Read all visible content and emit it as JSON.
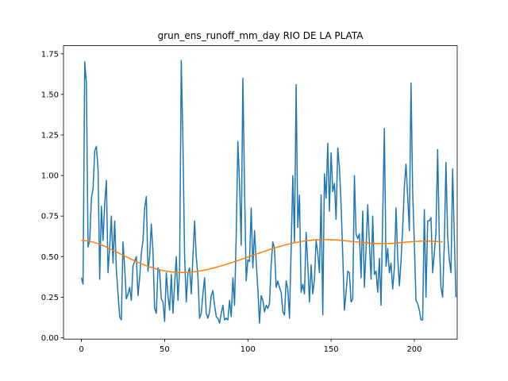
{
  "chart_data": {
    "type": "line",
    "title": "grun_ens_runoff_mm_day RIO DE LA PLATA",
    "xlabel": "",
    "ylabel": "",
    "xlim": [
      -10.75,
      225.75
    ],
    "ylim": [
      -0.0085,
      1.8
    ],
    "x_ticks": [
      0,
      50,
      100,
      150,
      200
    ],
    "x_tick_labels": [
      "0",
      "50",
      "100",
      "150",
      "200"
    ],
    "y_ticks": [
      0.0,
      0.25,
      0.5,
      0.75,
      1.0,
      1.25,
      1.5,
      1.75
    ],
    "y_tick_labels": [
      "0.00",
      "0.25",
      "0.50",
      "0.75",
      "1.00",
      "1.25",
      "1.50",
      "1.75"
    ],
    "grid": false,
    "series": [
      {
        "color": "#1f77b4",
        "values": [
          0.37,
          0.33,
          1.7,
          1.57,
          0.56,
          0.6,
          0.86,
          0.92,
          1.15,
          1.18,
          1.04,
          0.36,
          0.81,
          0.6,
          0.83,
          0.97,
          0.4,
          0.56,
          0.75,
          0.46,
          0.72,
          0.42,
          0.27,
          0.13,
          0.11,
          0.59,
          0.43,
          0.24,
          0.27,
          0.31,
          0.23,
          0.44,
          0.47,
          0.5,
          0.26,
          0.37,
          0.52,
          0.6,
          0.8,
          0.87,
          0.41,
          0.5,
          0.7,
          0.53,
          0.18,
          0.15,
          0.43,
          0.41,
          0.24,
          0.22,
          0.1,
          0.4,
          0.26,
          0.17,
          0.39,
          0.15,
          0.33,
          0.5,
          0.23,
          0.42,
          1.71,
          1.2,
          0.5,
          0.22,
          0.4,
          0.43,
          0.27,
          0.5,
          0.72,
          0.5,
          0.38,
          0.12,
          0.15,
          0.27,
          0.37,
          0.15,
          0.12,
          0.16,
          0.26,
          0.29,
          0.2,
          0.13,
          0.12,
          0.09,
          0.15,
          0.2,
          0.11,
          0.12,
          0.11,
          0.23,
          0.13,
          0.37,
          0.2,
          0.63,
          1.21,
          0.95,
          0.57,
          1.6,
          0.93,
          0.35,
          0.48,
          0.47,
          0.8,
          0.43,
          0.66,
          0.47,
          0.3,
          0.09,
          0.26,
          0.23,
          0.16,
          0.2,
          0.18,
          0.21,
          0.45,
          0.59,
          0.55,
          0.31,
          0.35,
          0.31,
          0.28,
          0.16,
          0.14,
          0.35,
          0.3,
          0.12,
          0.55,
          1.0,
          0.59,
          1.56,
          0.68,
          0.88,
          0.28,
          0.33,
          0.27,
          0.65,
          0.45,
          0.22,
          0.45,
          0.27,
          0.36,
          0.6,
          0.52,
          0.4,
          0.88,
          0.14,
          1.01,
          0.86,
          1.2,
          0.78,
          1.14,
          0.9,
          0.95,
          0.73,
          1.17,
          1.05,
          0.82,
          0.51,
          0.17,
          0.28,
          0.41,
          0.4,
          0.22,
          0.24,
          1.0,
          0.64,
          0.61,
          0.64,
          0.37,
          0.78,
          0.31,
          0.55,
          0.82,
          0.58,
          0.36,
          0.75,
          0.39,
          0.41,
          0.28,
          0.49,
          0.2,
          0.75,
          1.29,
          0.44,
          0.55,
          0.4,
          0.46,
          0.3,
          0.43,
          0.8,
          0.5,
          0.32,
          0.47,
          0.68,
          0.93,
          1.07,
          0.87,
          0.66,
          1.57,
          0.9,
          0.58,
          0.23,
          0.21,
          0.17,
          0.11,
          0.11,
          0.79,
          0.25,
          0.72,
          0.72,
          0.74,
          0.4,
          0.52,
          0.65,
          1.16,
          0.61,
          0.31,
          0.25,
          0.58,
          1.08,
          0.63,
          0.48,
          0.4,
          1.04,
          0.63,
          0.25
        ]
      },
      {
        "color": "#ff7f0e",
        "values": [
          0.6,
          0.599,
          0.598,
          0.597,
          0.596,
          0.594,
          0.592,
          0.589,
          0.586,
          0.583,
          0.58,
          0.576,
          0.572,
          0.568,
          0.564,
          0.559,
          0.554,
          0.549,
          0.544,
          0.539,
          0.534,
          0.529,
          0.524,
          0.519,
          0.514,
          0.509,
          0.504,
          0.499,
          0.494,
          0.489,
          0.484,
          0.479,
          0.474,
          0.469,
          0.465,
          0.46,
          0.456,
          0.452,
          0.448,
          0.444,
          0.441,
          0.437,
          0.434,
          0.43,
          0.427,
          0.424,
          0.421,
          0.419,
          0.416,
          0.414,
          0.412,
          0.41,
          0.409,
          0.407,
          0.406,
          0.405,
          0.404,
          0.403,
          0.402,
          0.402,
          0.402,
          0.402,
          0.402,
          0.403,
          0.403,
          0.404,
          0.405,
          0.406,
          0.407,
          0.408,
          0.41,
          0.411,
          0.413,
          0.415,
          0.417,
          0.419,
          0.421,
          0.424,
          0.426,
          0.429,
          0.431,
          0.434,
          0.437,
          0.44,
          0.443,
          0.446,
          0.449,
          0.452,
          0.455,
          0.459,
          0.462,
          0.465,
          0.469,
          0.472,
          0.476,
          0.479,
          0.483,
          0.487,
          0.49,
          0.494,
          0.497,
          0.501,
          0.504,
          0.508,
          0.512,
          0.515,
          0.519,
          0.522,
          0.526,
          0.529,
          0.533,
          0.536,
          0.54,
          0.543,
          0.546,
          0.549,
          0.553,
          0.556,
          0.559,
          0.562,
          0.565,
          0.568,
          0.571,
          0.573,
          0.576,
          0.578,
          0.581,
          0.583,
          0.585,
          0.587,
          0.589,
          0.591,
          0.593,
          0.595,
          0.596,
          0.598,
          0.599,
          0.6,
          0.601,
          0.602,
          0.603,
          0.604,
          0.604,
          0.605,
          0.605,
          0.605,
          0.605,
          0.605,
          0.605,
          0.605,
          0.604,
          0.604,
          0.603,
          0.603,
          0.602,
          0.601,
          0.6,
          0.599,
          0.598,
          0.597,
          0.596,
          0.595,
          0.594,
          0.593,
          0.592,
          0.591,
          0.59,
          0.589,
          0.588,
          0.587,
          0.586,
          0.585,
          0.584,
          0.583,
          0.582,
          0.582,
          0.581,
          0.581,
          0.58,
          0.58,
          0.58,
          0.58,
          0.58,
          0.58,
          0.58,
          0.581,
          0.581,
          0.582,
          0.583,
          0.583,
          0.584,
          0.585,
          0.586,
          0.587,
          0.588,
          0.589,
          0.59,
          0.591,
          0.592,
          0.592,
          0.593,
          0.594,
          0.594,
          0.595,
          0.595,
          0.595,
          0.595,
          0.595,
          0.595,
          0.595,
          0.595,
          0.594,
          0.594,
          0.593,
          0.593,
          0.592,
          0.592,
          0.591
        ]
      }
    ]
  }
}
